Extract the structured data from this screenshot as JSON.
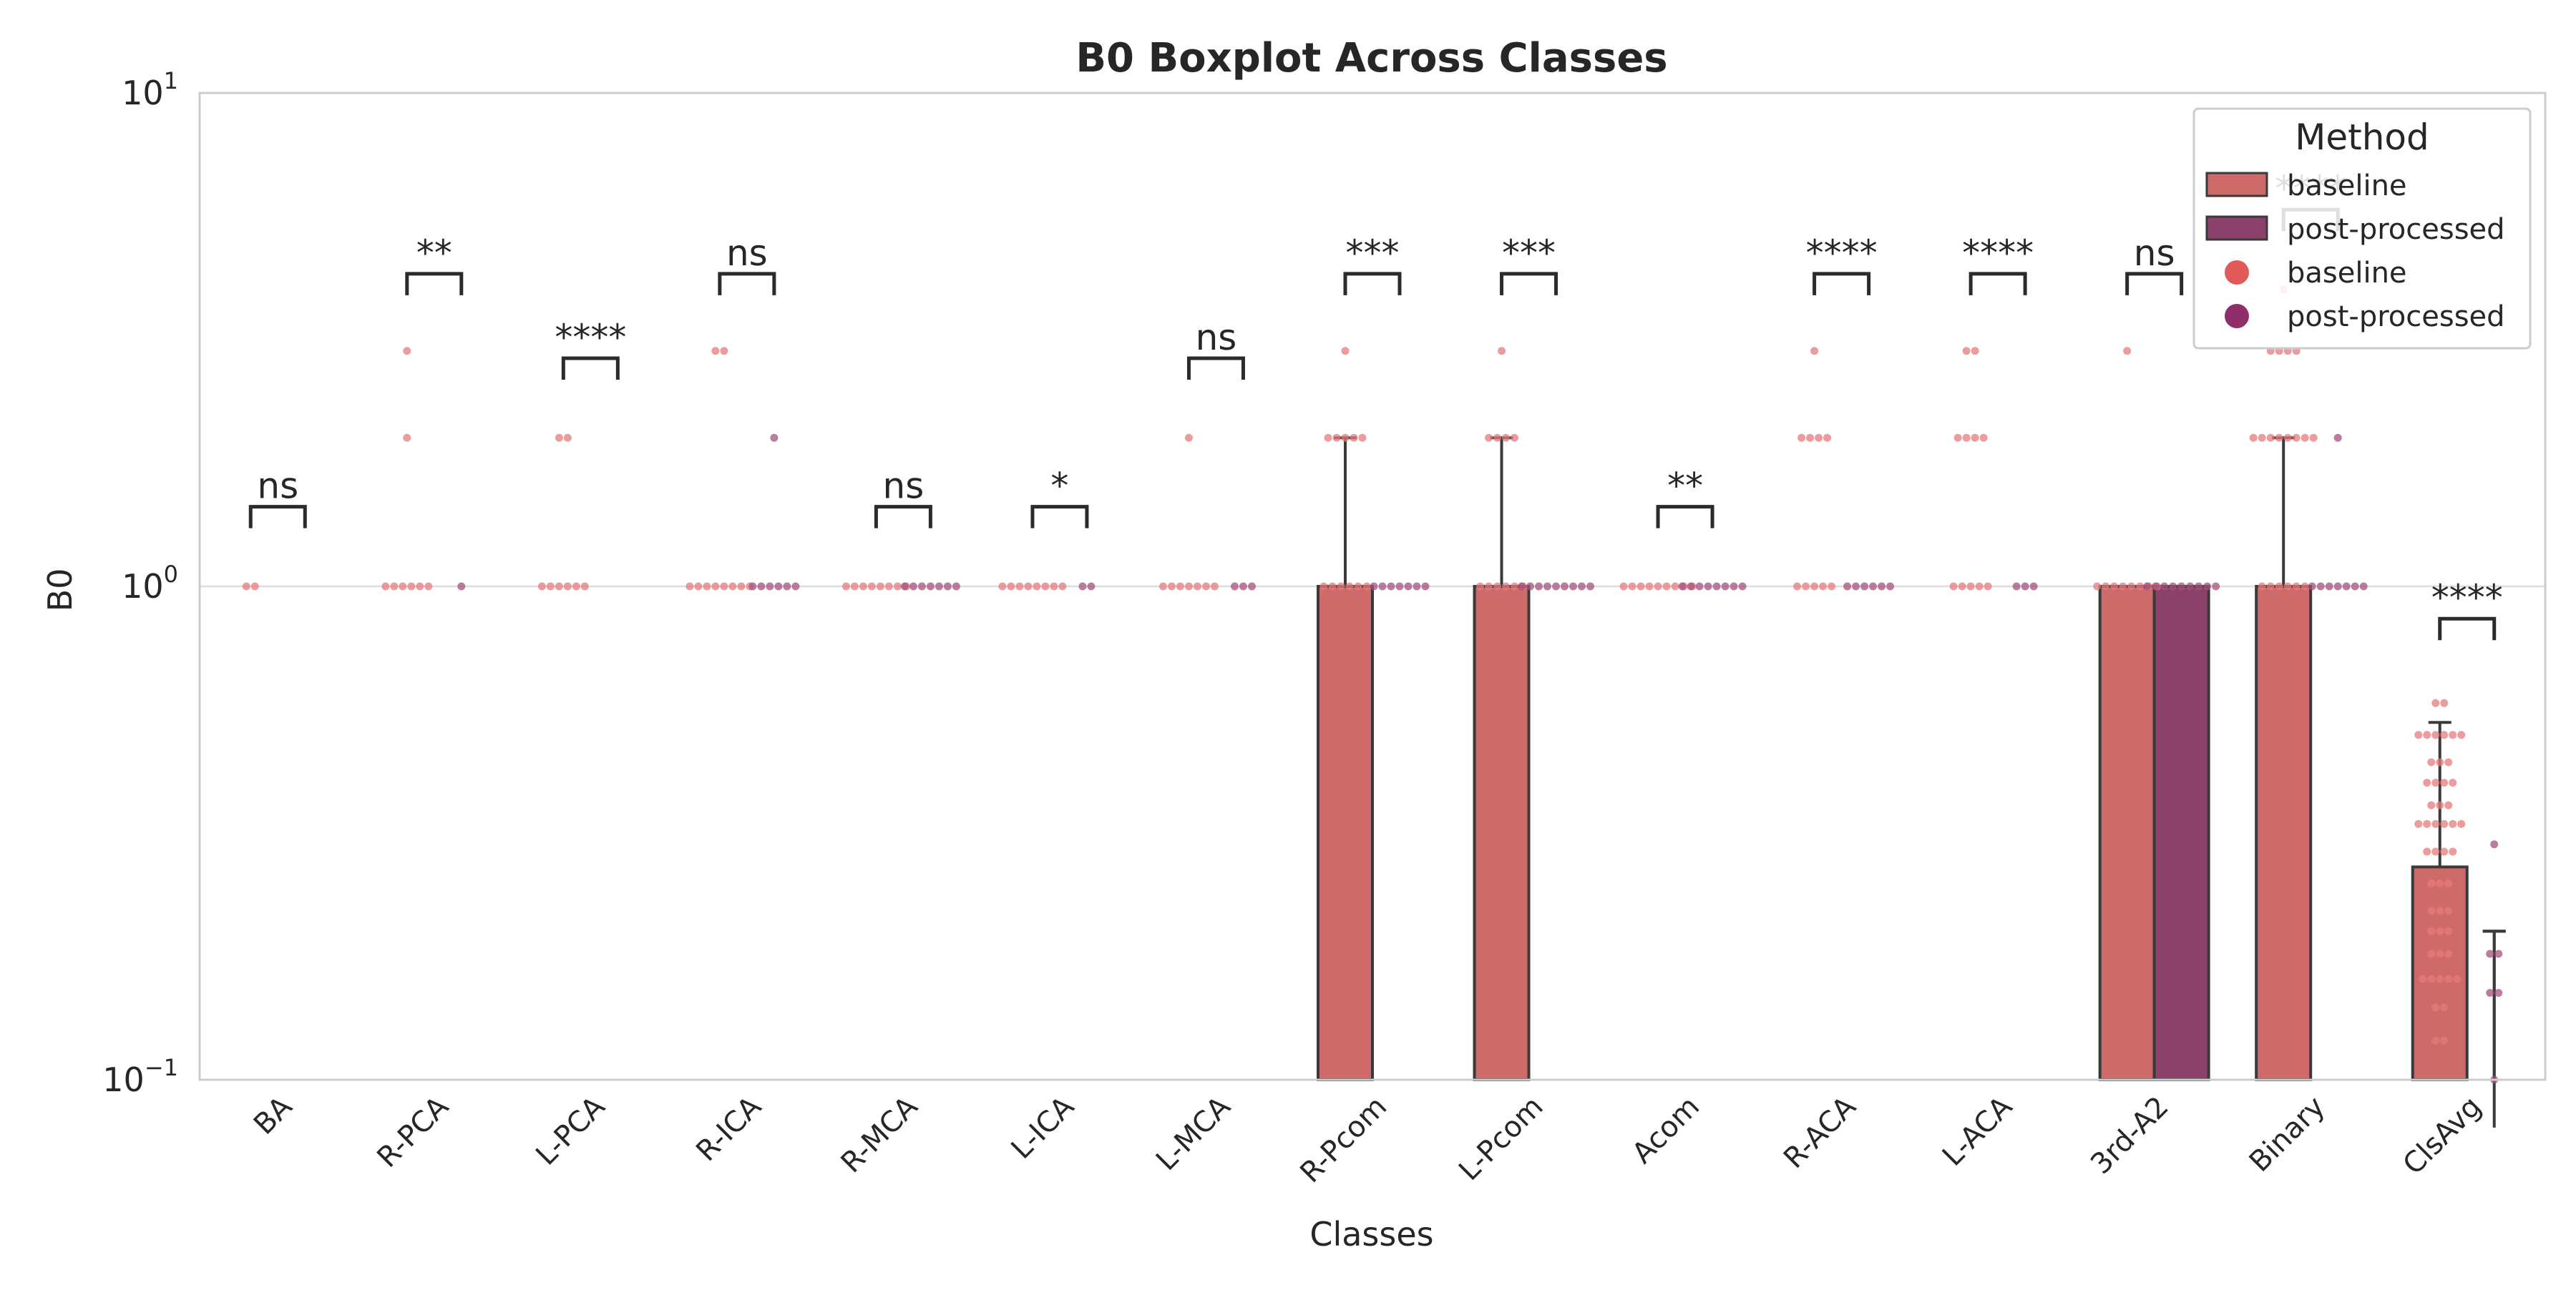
{
  "chart_data": {
    "type": "bar",
    "title": "B0 Boxplot Across Classes",
    "xlabel": "Classes",
    "ylabel": "B0",
    "yscale": "log",
    "ylim": [
      0.1,
      10
    ],
    "grid": true,
    "y_ticks": [
      {
        "value": 0.1,
        "base": "10",
        "exp": "−1"
      },
      {
        "value": 1,
        "base": "10",
        "exp": "0"
      },
      {
        "value": 10,
        "base": "10",
        "exp": "1"
      }
    ],
    "categories": [
      "BA",
      "R-PCA",
      "L-PCA",
      "R-ICA",
      "R-MCA",
      "L-ICA",
      "L-MCA",
      "R-Pcom",
      "L-Pcom",
      "Acom",
      "R-ACA",
      "L-ACA",
      "3rd-A2",
      "Binary",
      "ClsAvg"
    ],
    "colors": {
      "baseline": "#cf6a6a",
      "post-processed": "#8b416a",
      "baseline_dot": "#e05a5a",
      "post_dot": "#8f2f6a"
    },
    "series": [
      {
        "name": "baseline",
        "values": [
          null,
          null,
          null,
          null,
          null,
          null,
          null,
          1,
          1,
          null,
          null,
          null,
          1,
          1,
          0.27
        ],
        "err_top": [
          null,
          null,
          null,
          null,
          null,
          null,
          null,
          2,
          2,
          null,
          null,
          null,
          null,
          2,
          0.53
        ]
      },
      {
        "name": "post-processed",
        "values": [
          null,
          null,
          null,
          null,
          null,
          null,
          null,
          null,
          null,
          null,
          null,
          null,
          1,
          null,
          0.08
        ],
        "err_top": [
          null,
          null,
          null,
          null,
          null,
          null,
          null,
          null,
          null,
          null,
          null,
          null,
          null,
          null,
          0.2
        ]
      }
    ],
    "strip_points": {
      "baseline": [
        [
          1,
          1
        ],
        [
          3,
          2,
          1,
          1,
          1,
          1,
          1,
          1
        ],
        [
          2,
          2,
          1,
          1,
          1,
          1,
          1,
          1
        ],
        [
          3,
          3,
          1,
          1,
          1,
          1,
          1,
          1,
          1,
          1
        ],
        [
          1,
          1,
          1,
          1,
          1,
          1,
          1,
          1
        ],
        [
          1,
          1,
          1,
          1,
          1,
          1,
          1,
          1
        ],
        [
          2,
          1,
          1,
          1,
          1,
          1,
          1,
          1
        ],
        [
          3,
          2,
          2,
          2,
          2,
          2,
          1,
          1,
          1,
          1,
          1,
          1
        ],
        [
          3,
          2,
          2,
          2,
          2,
          1,
          1,
          1,
          1,
          1,
          1
        ],
        [
          1,
          1,
          1,
          1,
          1,
          1,
          1,
          1,
          1
        ],
        [
          3,
          2,
          2,
          2,
          2,
          1,
          1,
          1,
          1,
          1
        ],
        [
          3,
          3,
          2,
          2,
          2,
          2,
          1,
          1,
          1,
          1,
          1
        ],
        [
          3,
          1,
          1,
          1,
          1,
          1,
          1,
          1,
          1
        ],
        [
          4,
          3,
          3,
          3,
          3,
          2,
          2,
          2,
          2,
          2,
          2,
          2,
          2,
          1,
          1,
          1,
          1,
          1,
          1
        ],
        [
          0.58,
          0.58,
          0.5,
          0.5,
          0.5,
          0.5,
          0.5,
          0.5,
          0.44,
          0.44,
          0.44,
          0.4,
          0.4,
          0.4,
          0.4,
          0.36,
          0.36,
          0.36,
          0.33,
          0.33,
          0.33,
          0.33,
          0.33,
          0.33,
          0.29,
          0.29,
          0.29,
          0.29,
          0.25,
          0.25,
          0.25,
          0.22,
          0.22,
          0.22,
          0.2,
          0.2,
          0.2,
          0.18,
          0.18,
          0.18,
          0.16,
          0.16,
          0.16,
          0.16,
          0.16,
          0.14,
          0.14,
          0.12,
          0.12
        ]
      ],
      "post-processed": [
        [],
        [
          1
        ],
        [],
        [
          2,
          1,
          1,
          1,
          1,
          1,
          1
        ],
        [
          1,
          1,
          1,
          1,
          1,
          1,
          1
        ],
        [
          1,
          1
        ],
        [
          1,
          1,
          1
        ],
        [
          1,
          1,
          1,
          1,
          1,
          1,
          1
        ],
        [
          1,
          1,
          1,
          1,
          1,
          1,
          1,
          1,
          1
        ],
        [
          1,
          1,
          1,
          1,
          1,
          1,
          1,
          1
        ],
        [
          1,
          1,
          1,
          1,
          1,
          1
        ],
        [
          1,
          1,
          1
        ],
        [
          1,
          1,
          1,
          1,
          1,
          1,
          1,
          1,
          1
        ],
        [
          2,
          1,
          1,
          1,
          1,
          1,
          1,
          1
        ],
        [
          0.3,
          0.18,
          0.18,
          0.15,
          0.15,
          0.1
        ]
      ]
    },
    "annotations": [
      {
        "category": "BA",
        "label": "ns",
        "y": 1.45
      },
      {
        "category": "R-PCA",
        "label": "**",
        "y": 4.3
      },
      {
        "category": "L-PCA",
        "label": "****",
        "y": 2.9
      },
      {
        "category": "R-ICA",
        "label": "ns",
        "y": 4.3
      },
      {
        "category": "R-MCA",
        "label": "ns",
        "y": 1.45
      },
      {
        "category": "L-ICA",
        "label": "*",
        "y": 1.45
      },
      {
        "category": "L-MCA",
        "label": "ns",
        "y": 2.9
      },
      {
        "category": "R-Pcom",
        "label": "***",
        "y": 4.3
      },
      {
        "category": "L-Pcom",
        "label": "***",
        "y": 4.3
      },
      {
        "category": "Acom",
        "label": "**",
        "y": 1.45
      },
      {
        "category": "R-ACA",
        "label": "****",
        "y": 4.3
      },
      {
        "category": "L-ACA",
        "label": "****",
        "y": 4.3
      },
      {
        "category": "3rd-A2",
        "label": "ns",
        "y": 4.3
      },
      {
        "category": "Binary",
        "label": "****",
        "y": 5.8
      },
      {
        "category": "ClsAvg",
        "label": "****",
        "y": 0.86
      }
    ],
    "legend": {
      "title": "Method",
      "position": "top-right",
      "items": [
        {
          "kind": "patch",
          "label": "baseline",
          "color": "#cf6a6a"
        },
        {
          "kind": "patch",
          "label": "post-processed",
          "color": "#8b416a"
        },
        {
          "kind": "dot",
          "label": "baseline",
          "color": "#e05a5a"
        },
        {
          "kind": "dot",
          "label": "post-processed",
          "color": "#8f2f6a"
        }
      ]
    }
  }
}
